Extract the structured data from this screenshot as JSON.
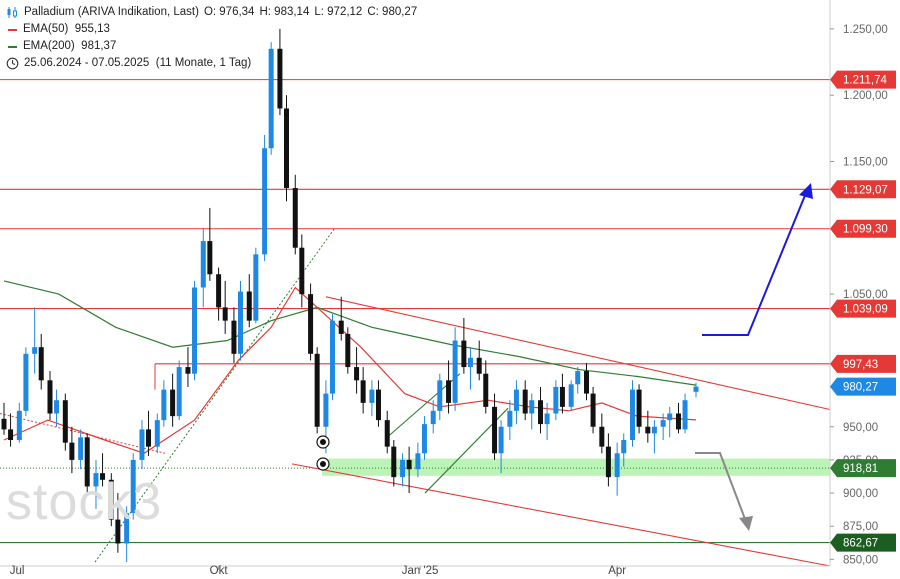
{
  "header": {
    "title": "Palladium (ARIVA Indikation, Last)",
    "ohlc": [
      {
        "label": "O:",
        "value": "976,34"
      },
      {
        "label": "H:",
        "value": "983,14"
      },
      {
        "label": "L:",
        "value": "972,12"
      },
      {
        "label": "C:",
        "value": "980,27"
      }
    ],
    "ema50": {
      "label": "EMA(50)",
      "value": "955,13",
      "color": "#e53935"
    },
    "ema200": {
      "label": "EMA(200)",
      "value": "981,37",
      "color": "#2e7d32"
    },
    "range": "25.06.2024 - 07.05.2025",
    "range_note": "(11 Monate, 1 Tag)"
  },
  "watermark": "stock3",
  "chart_data": {
    "type": "candlestick",
    "ylim": [
      845,
      1265
    ],
    "yticks": [
      {
        "value": 850,
        "label": "850,00"
      },
      {
        "value": 875,
        "label": "875,00"
      },
      {
        "value": 900,
        "label": "900,00"
      },
      {
        "value": 925,
        "label": "925,00"
      },
      {
        "value": 950,
        "label": "950,00"
      },
      {
        "value": 1050,
        "label": "1.050,00"
      },
      {
        "value": 1150,
        "label": "1.150,00"
      },
      {
        "value": 1200,
        "label": "1.200,00"
      },
      {
        "value": 1250,
        "label": "1.250,00"
      }
    ],
    "xticks": [
      {
        "date": "2024-07-01",
        "label": "Jul"
      },
      {
        "date": "2024-10-01",
        "label": "Okt"
      },
      {
        "date": "2025-01-01",
        "label": "Jan '25"
      },
      {
        "date": "2025-04-01",
        "label": "Apr"
      }
    ],
    "xrange": [
      "2024-06-25",
      "2025-05-07"
    ],
    "colors": {
      "up": "#1e88e5",
      "down": "#111111",
      "ema50": "#e53935",
      "ema200": "#2e7d32",
      "resistance": "#e53935",
      "support": "#2e7d32",
      "zone": "#a5f0a0",
      "arrow_up": "#1a1adb",
      "arrow_down": "#888888"
    },
    "candles": [
      [
        "2024-06-25",
        956,
        968,
        944,
        948
      ],
      [
        "2024-06-28",
        948,
        960,
        935,
        940
      ],
      [
        "2024-07-02",
        940,
        968,
        938,
        962
      ],
      [
        "2024-07-05",
        962,
        1010,
        958,
        1005
      ],
      [
        "2024-07-09",
        1005,
        1040,
        990,
        1010
      ],
      [
        "2024-07-12",
        1010,
        1020,
        978,
        985
      ],
      [
        "2024-07-16",
        985,
        992,
        955,
        960
      ],
      [
        "2024-07-19",
        960,
        978,
        950,
        970
      ],
      [
        "2024-07-23",
        970,
        975,
        932,
        938
      ],
      [
        "2024-07-26",
        938,
        950,
        915,
        925
      ],
      [
        "2024-07-30",
        925,
        948,
        918,
        942
      ],
      [
        "2024-08-02",
        942,
        945,
        900,
        905
      ],
      [
        "2024-08-06",
        905,
        925,
        888,
        915
      ],
      [
        "2024-08-09",
        915,
        930,
        905,
        910
      ],
      [
        "2024-08-13",
        910,
        915,
        875,
        880
      ],
      [
        "2024-08-16",
        880,
        900,
        855,
        862
      ],
      [
        "2024-08-20",
        862,
        890,
        848,
        885
      ],
      [
        "2024-08-23",
        885,
        930,
        880,
        925
      ],
      [
        "2024-08-27",
        925,
        955,
        918,
        948
      ],
      [
        "2024-08-30",
        948,
        962,
        928,
        935
      ],
      [
        "2024-09-03",
        935,
        960,
        930,
        955
      ],
      [
        "2024-09-06",
        955,
        985,
        950,
        978
      ],
      [
        "2024-09-10",
        978,
        990,
        950,
        958
      ],
      [
        "2024-09-13",
        958,
        1000,
        955,
        995
      ],
      [
        "2024-09-17",
        995,
        1010,
        980,
        990
      ],
      [
        "2024-09-20",
        990,
        1060,
        985,
        1055
      ],
      [
        "2024-09-24",
        1055,
        1100,
        1040,
        1090
      ],
      [
        "2024-09-27",
        1090,
        1115,
        1060,
        1065
      ],
      [
        "2024-10-01",
        1065,
        1070,
        1030,
        1040
      ],
      [
        "2024-10-04",
        1040,
        1060,
        1020,
        1030
      ],
      [
        "2024-10-08",
        1030,
        1040,
        998,
        1005
      ],
      [
        "2024-10-11",
        1005,
        1060,
        1000,
        1052
      ],
      [
        "2024-10-15",
        1052,
        1065,
        1025,
        1030
      ],
      [
        "2024-10-18",
        1030,
        1085,
        1028,
        1080
      ],
      [
        "2024-10-22",
        1080,
        1170,
        1075,
        1160
      ],
      [
        "2024-10-25",
        1160,
        1240,
        1155,
        1235
      ],
      [
        "2024-10-29",
        1235,
        1250,
        1185,
        1190
      ],
      [
        "2024-11-01",
        1190,
        1200,
        1120,
        1130
      ],
      [
        "2024-11-05",
        1130,
        1140,
        1080,
        1085
      ],
      [
        "2024-11-08",
        1085,
        1095,
        1040,
        1050
      ],
      [
        "2024-11-12",
        1050,
        1058,
        1000,
        1005
      ],
      [
        "2024-11-15",
        1005,
        1010,
        945,
        950
      ],
      [
        "2024-11-19",
        950,
        985,
        930,
        975
      ],
      [
        "2024-11-22",
        975,
        1035,
        970,
        1030
      ],
      [
        "2024-11-26",
        1030,
        1048,
        1015,
        1020
      ],
      [
        "2024-11-29",
        1020,
        1025,
        990,
        995
      ],
      [
        "2024-12-03",
        995,
        1010,
        975,
        985
      ],
      [
        "2024-12-06",
        985,
        995,
        960,
        968
      ],
      [
        "2024-12-10",
        968,
        985,
        958,
        978
      ],
      [
        "2024-12-13",
        978,
        985,
        950,
        955
      ],
      [
        "2024-12-17",
        955,
        962,
        930,
        935
      ],
      [
        "2024-12-20",
        935,
        940,
        905,
        912
      ],
      [
        "2024-12-24",
        912,
        930,
        905,
        925
      ],
      [
        "2024-12-27",
        925,
        935,
        900,
        918
      ],
      [
        "2024-12-31",
        918,
        938,
        912,
        930
      ],
      [
        "2025-01-03",
        930,
        958,
        925,
        952
      ],
      [
        "2025-01-07",
        952,
        970,
        945,
        962
      ],
      [
        "2025-01-10",
        962,
        990,
        955,
        985
      ],
      [
        "2025-01-14",
        985,
        1000,
        960,
        968
      ],
      [
        "2025-01-17",
        968,
        1025,
        962,
        1015
      ],
      [
        "2025-01-21",
        1015,
        1032,
        990,
        995
      ],
      [
        "2025-01-24",
        995,
        1010,
        978,
        1002
      ],
      [
        "2025-01-28",
        1002,
        1015,
        985,
        990
      ],
      [
        "2025-01-31",
        990,
        1000,
        960,
        965
      ],
      [
        "2025-02-04",
        965,
        975,
        925,
        930
      ],
      [
        "2025-02-07",
        930,
        955,
        915,
        950
      ],
      [
        "2025-02-11",
        950,
        970,
        940,
        962
      ],
      [
        "2025-02-14",
        962,
        985,
        952,
        978
      ],
      [
        "2025-02-18",
        978,
        985,
        955,
        960
      ],
      [
        "2025-02-21",
        960,
        975,
        948,
        970
      ],
      [
        "2025-02-25",
        970,
        980,
        945,
        952
      ],
      [
        "2025-02-28",
        952,
        968,
        940,
        960
      ],
      [
        "2025-03-04",
        960,
        985,
        955,
        980
      ],
      [
        "2025-03-07",
        980,
        990,
        960,
        965
      ],
      [
        "2025-03-11",
        965,
        985,
        962,
        982
      ],
      [
        "2025-03-14",
        982,
        995,
        975,
        992
      ],
      [
        "2025-03-18",
        992,
        998,
        970,
        975
      ],
      [
        "2025-03-21",
        975,
        980,
        945,
        950
      ],
      [
        "2025-03-25",
        950,
        960,
        930,
        935
      ],
      [
        "2025-03-28",
        935,
        945,
        905,
        912
      ],
      [
        "2025-04-01",
        912,
        938,
        898,
        930
      ],
      [
        "2025-04-04",
        930,
        945,
        920,
        940
      ],
      [
        "2025-04-08",
        940,
        985,
        935,
        978
      ],
      [
        "2025-04-11",
        978,
        982,
        945,
        950
      ],
      [
        "2025-04-15",
        950,
        962,
        938,
        945
      ],
      [
        "2025-04-18",
        945,
        955,
        930,
        950
      ],
      [
        "2025-04-22",
        950,
        960,
        940,
        955
      ],
      [
        "2025-04-25",
        955,
        965,
        942,
        960
      ],
      [
        "2025-04-29",
        960,
        968,
        945,
        948
      ],
      [
        "2025-05-02",
        948,
        975,
        945,
        970
      ],
      [
        "2025-05-07",
        976.34,
        983.14,
        972.12,
        980.27
      ]
    ],
    "ema50_series": [
      [
        "2024-06-25",
        940
      ],
      [
        "2024-07-15",
        955
      ],
      [
        "2024-08-10",
        940
      ],
      [
        "2024-08-28",
        930
      ],
      [
        "2024-09-20",
        955
      ],
      [
        "2024-10-10",
        1000
      ],
      [
        "2024-10-25",
        1025
      ],
      [
        "2024-11-05",
        1055
      ],
      [
        "2024-11-15",
        1040
      ],
      [
        "2024-12-05",
        1010
      ],
      [
        "2024-12-25",
        975
      ],
      [
        "2025-01-10",
        965
      ],
      [
        "2025-02-01",
        970
      ],
      [
        "2025-02-20",
        965
      ],
      [
        "2025-03-10",
        962
      ],
      [
        "2025-03-25",
        968
      ],
      [
        "2025-04-10",
        958
      ],
      [
        "2025-05-07",
        955.13
      ]
    ],
    "ema200_series": [
      [
        "2024-06-25",
        1060
      ],
      [
        "2024-07-20",
        1050
      ],
      [
        "2024-08-15",
        1025
      ],
      [
        "2024-09-10",
        1010
      ],
      [
        "2024-10-05",
        1015
      ],
      [
        "2024-10-25",
        1030
      ],
      [
        "2024-11-15",
        1040
      ],
      [
        "2024-12-10",
        1025
      ],
      [
        "2025-01-15",
        1012
      ],
      [
        "2025-02-15",
        1003
      ],
      [
        "2025-03-15",
        993
      ],
      [
        "2025-04-10",
        988
      ],
      [
        "2025-05-07",
        981.37
      ]
    ],
    "horizontal_levels": [
      {
        "value": 1211.74,
        "label": "1.211,74",
        "kind": "resistance"
      },
      {
        "value": 1129.07,
        "label": "1.129,07",
        "kind": "resistance"
      },
      {
        "value": 1099.3,
        "label": "1.099,30",
        "kind": "resistance"
      },
      {
        "value": 1039.09,
        "label": "1.039,09",
        "kind": "resistance"
      },
      {
        "value": 997.43,
        "label": "997,43",
        "kind": "resistance"
      },
      {
        "value": 918.81,
        "label": "918,81",
        "kind": "zone"
      },
      {
        "value": 862.67,
        "label": "862,67",
        "kind": "support"
      }
    ],
    "last_price": {
      "value": 980.27,
      "label": "980,27"
    }
  }
}
